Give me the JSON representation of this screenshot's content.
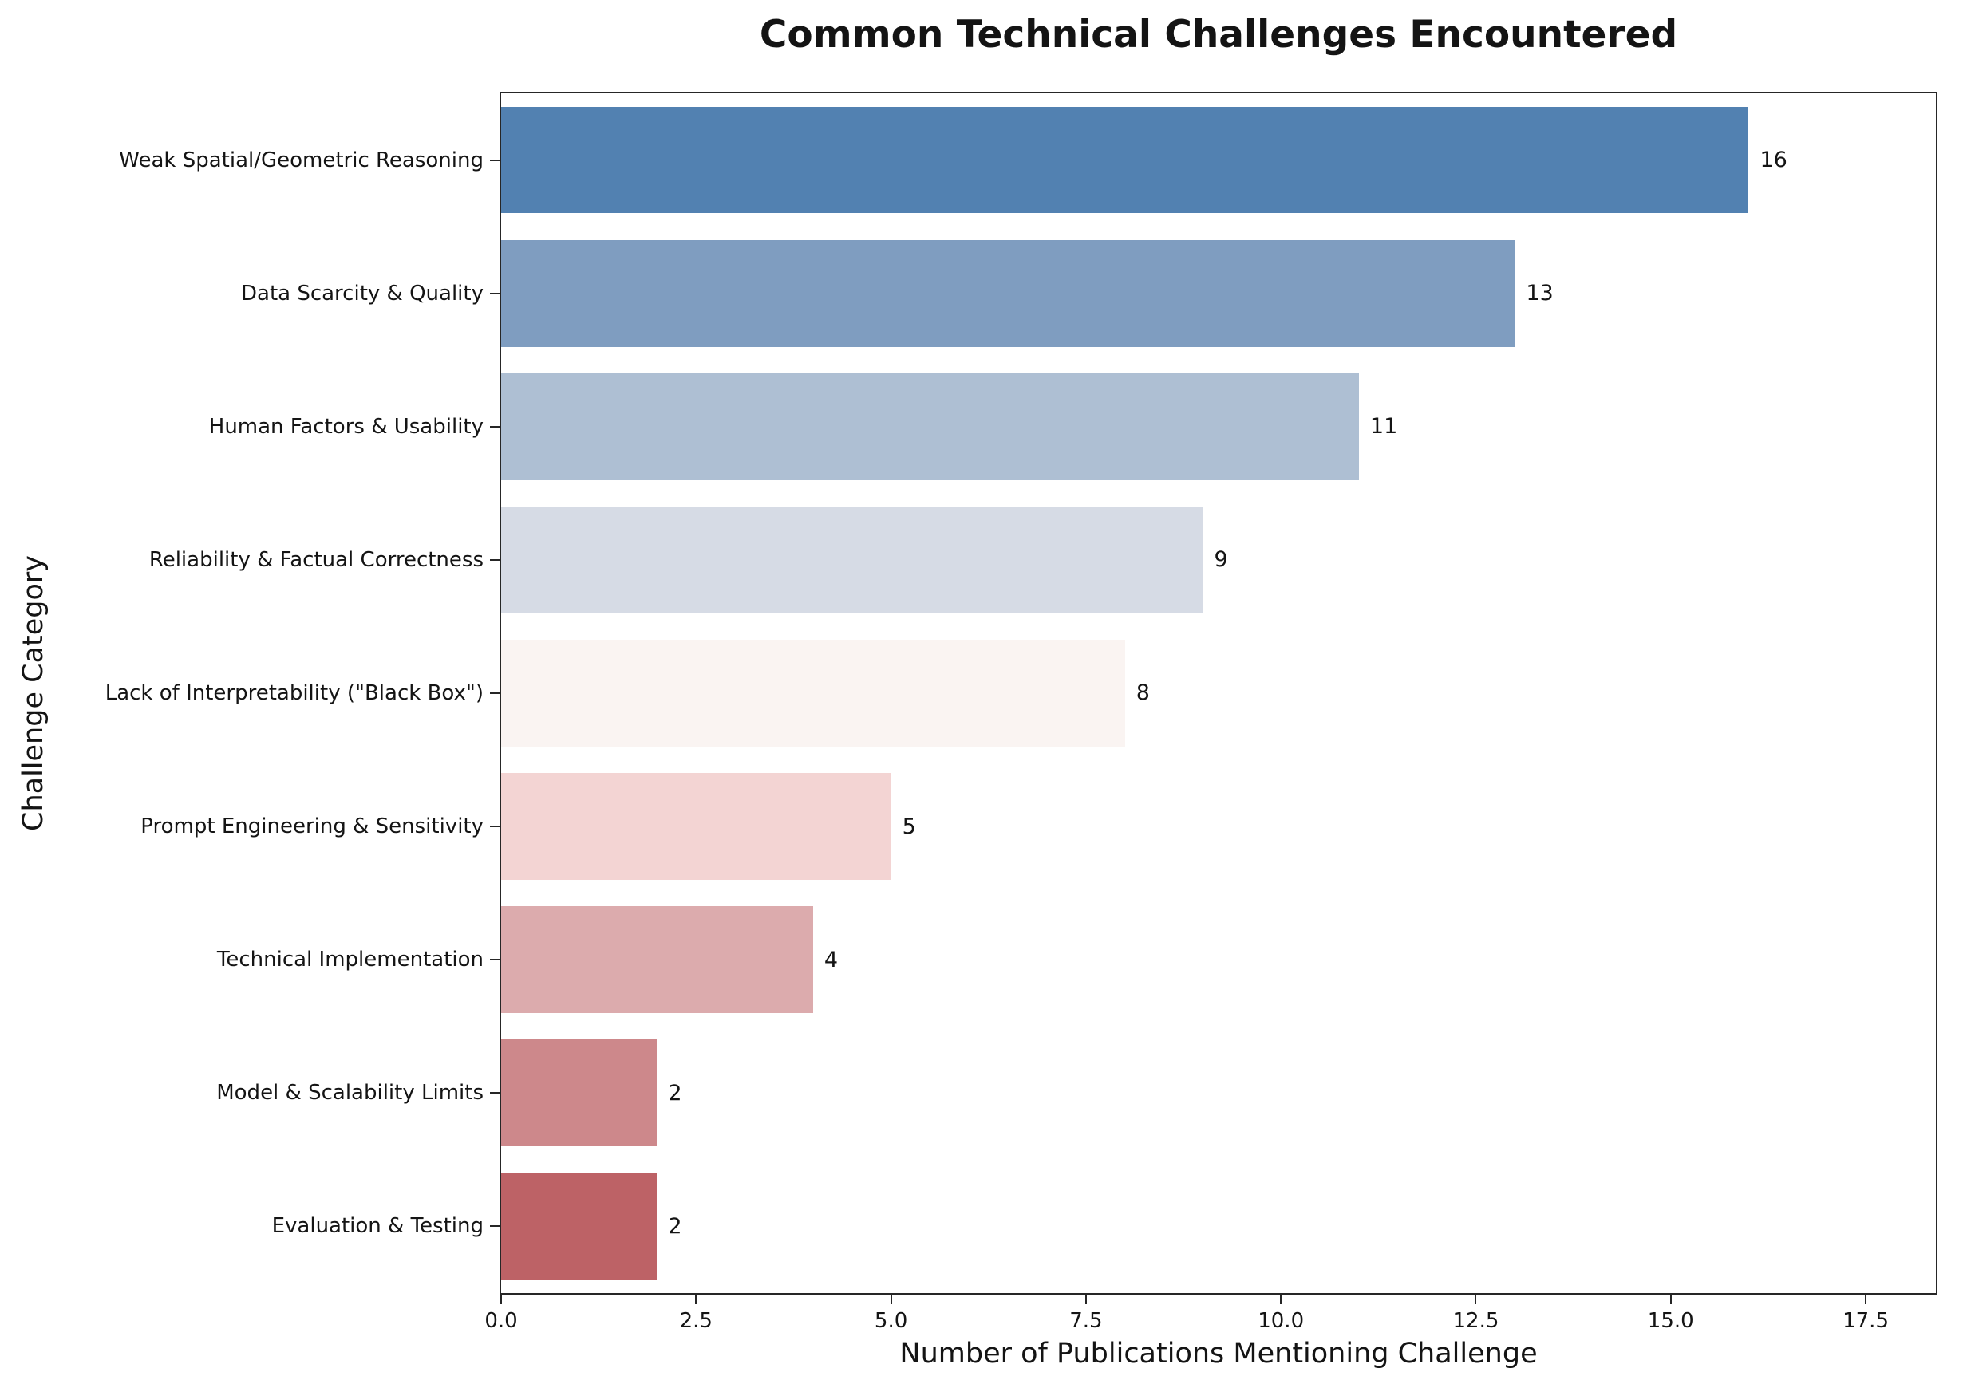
{
  "chart_data": {
    "type": "bar",
    "orientation": "horizontal",
    "title": "Common Technical Challenges Encountered",
    "xlabel": "Number of Publications Mentioning Challenge",
    "ylabel": "Challenge Category",
    "categories": [
      "Weak Spatial/Geometric Reasoning",
      "Data Scarcity & Quality",
      "Human Factors & Usability",
      "Reliability & Factual Correctness",
      "Lack of Interpretability (\"Black Box\")",
      "Prompt Engineering & Sensitivity",
      "Technical Implementation",
      "Model & Scalability Limits",
      "Evaluation & Testing"
    ],
    "values": [
      16,
      13,
      11,
      9,
      8,
      5,
      4,
      2,
      2
    ],
    "value_labels": [
      "16",
      "13",
      "11",
      "9",
      "8",
      "5",
      "4",
      "2",
      "2"
    ],
    "bar_colors": [
      "#5281b1",
      "#7f9dc0",
      "#aebfd3",
      "#d6dbe5",
      "#faf4f2",
      "#f3d4d3",
      "#dcabad",
      "#cd888b",
      "#bd6266"
    ],
    "xlim": [
      0,
      18.4
    ],
    "xticks": [
      0,
      2.5,
      5,
      7.5,
      10,
      12.5,
      15,
      17.5
    ],
    "xtick_labels": [
      "0.0",
      "2.5",
      "5.0",
      "7.5",
      "10.0",
      "12.5",
      "15.0",
      "17.5"
    ],
    "grid": false,
    "legend": null,
    "bar_fill_fraction": 0.8,
    "spine_color": "#262626",
    "text_color": "#141414",
    "background": "#ffffff"
  }
}
